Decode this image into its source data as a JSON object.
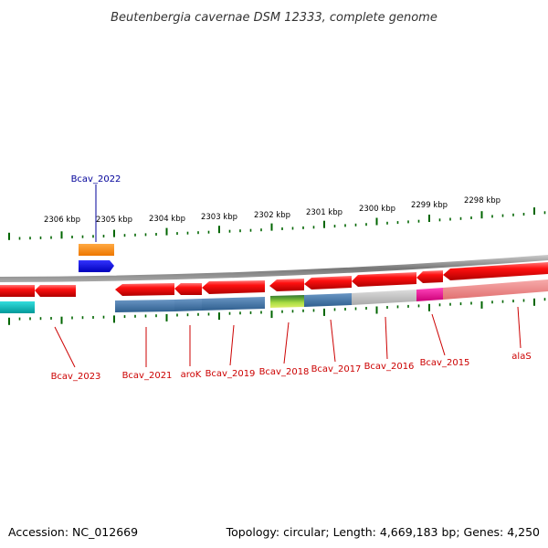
{
  "title": "Beutenbergia cavernae DSM 12333, complete genome",
  "footer": {
    "accession": "Accession: NC_012669",
    "topology": "Topology: circular; Length: 4,669,183 bp; Genes: 4,250"
  },
  "scale_labels": [
    "2306 kbp",
    "2305 kbp",
    "2304 kbp",
    "2303 kbp",
    "2302 kbp",
    "2301 kbp",
    "2300 kbp",
    "2299 kbp",
    "2298 kbp"
  ],
  "gene_labels": {
    "bcav_2022": "Bcav_2022",
    "bcav_2023": "Bcav_2023",
    "bcav_2021": "Bcav_2021",
    "arok": "aroK",
    "bcav_2019": "Bcav_2019",
    "bcav_2018": "Bcav_2018",
    "bcav_2017": "Bcav_2017",
    "bcav_2016": "Bcav_2016",
    "bcav_2015": "Bcav_2015",
    "alas": "alaS"
  },
  "colors": {
    "gene_red": "#ee0000",
    "backbone": "#888888",
    "tick_green": "#006600",
    "label_red": "#cc0000",
    "label_blue": "#000099",
    "orange": "#ff8800",
    "blue": "#0000ee",
    "cyan": "#00bbbb",
    "steel_blue": "#4477aa",
    "light_gray": "#bbbbbb",
    "magenta": "#ee1199",
    "pink": "#ee8888",
    "lime": "#88cc22"
  }
}
